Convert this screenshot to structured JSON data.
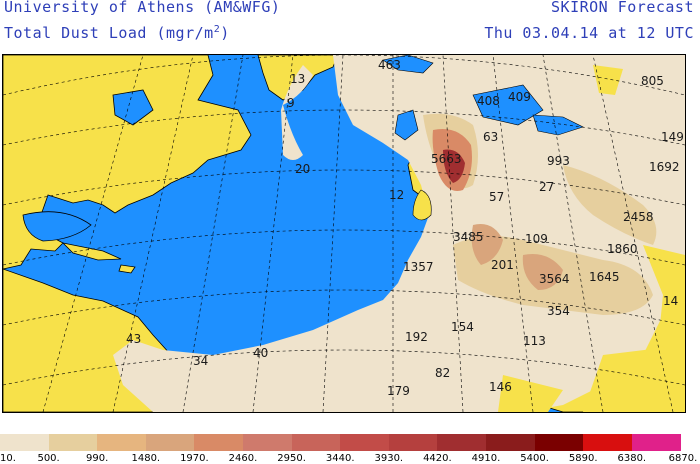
{
  "header": {
    "institution": "University of Athens (AM&WFG)",
    "product": "SKIRON Forecast",
    "field_label": "Total Dust Load (mgr/m",
    "field_sup": "2",
    "field_close": ")",
    "valid_time": "Thu 03.04.14 at 12 UTC"
  },
  "colors": {
    "ocean": "#1e90ff",
    "land": "#f7e14a",
    "dust_light": "#efe3cc"
  },
  "map_values": [
    {
      "id": "v463",
      "text": "463"
    },
    {
      "id": "v805",
      "text": "805"
    },
    {
      "id": "v13",
      "text": "13"
    },
    {
      "id": "v408",
      "text": "408"
    },
    {
      "id": "v409",
      "text": "409"
    },
    {
      "id": "v149",
      "text": "149"
    },
    {
      "id": "v9",
      "text": "9"
    },
    {
      "id": "v63",
      "text": "63"
    },
    {
      "id": "v5663",
      "text": "5663"
    },
    {
      "id": "v993",
      "text": "993"
    },
    {
      "id": "v1692",
      "text": "1692"
    },
    {
      "id": "v20",
      "text": "20"
    },
    {
      "id": "v27",
      "text": "27"
    },
    {
      "id": "v12",
      "text": "12"
    },
    {
      "id": "v57",
      "text": "57"
    },
    {
      "id": "v2458",
      "text": "2458"
    },
    {
      "id": "v3485",
      "text": "3485"
    },
    {
      "id": "v109",
      "text": "109"
    },
    {
      "id": "v1860",
      "text": "1860"
    },
    {
      "id": "v1357",
      "text": "1357"
    },
    {
      "id": "v201",
      "text": "201"
    },
    {
      "id": "v3564",
      "text": "3564"
    },
    {
      "id": "v1645",
      "text": "1645"
    },
    {
      "id": "v14",
      "text": "14"
    },
    {
      "id": "v354",
      "text": "354"
    },
    {
      "id": "v43",
      "text": "43"
    },
    {
      "id": "v154",
      "text": "154"
    },
    {
      "id": "v192",
      "text": "192"
    },
    {
      "id": "v113",
      "text": "113"
    },
    {
      "id": "v34",
      "text": "34"
    },
    {
      "id": "v40",
      "text": "40"
    },
    {
      "id": "v82",
      "text": "82"
    },
    {
      "id": "v146",
      "text": "146"
    },
    {
      "id": "v179",
      "text": "179"
    }
  ],
  "legend": {
    "swatches": [
      "#efe3cc",
      "#e6cf9e",
      "#e6b57f",
      "#d9a57c",
      "#d98a66",
      "#cf7a6c",
      "#c8645a",
      "#c24c48",
      "#b5403e",
      "#a02e30",
      "#8a1c1c",
      "#7a0000",
      "#d80f0f",
      "#e0218a"
    ],
    "ticks": [
      "10.",
      "500.",
      "990.",
      "1480.",
      "1970.",
      "2460.",
      "2950.",
      "3440.",
      "3930.",
      "4420.",
      "4910.",
      "5400.",
      "5890.",
      "6380.",
      "6870."
    ]
  }
}
